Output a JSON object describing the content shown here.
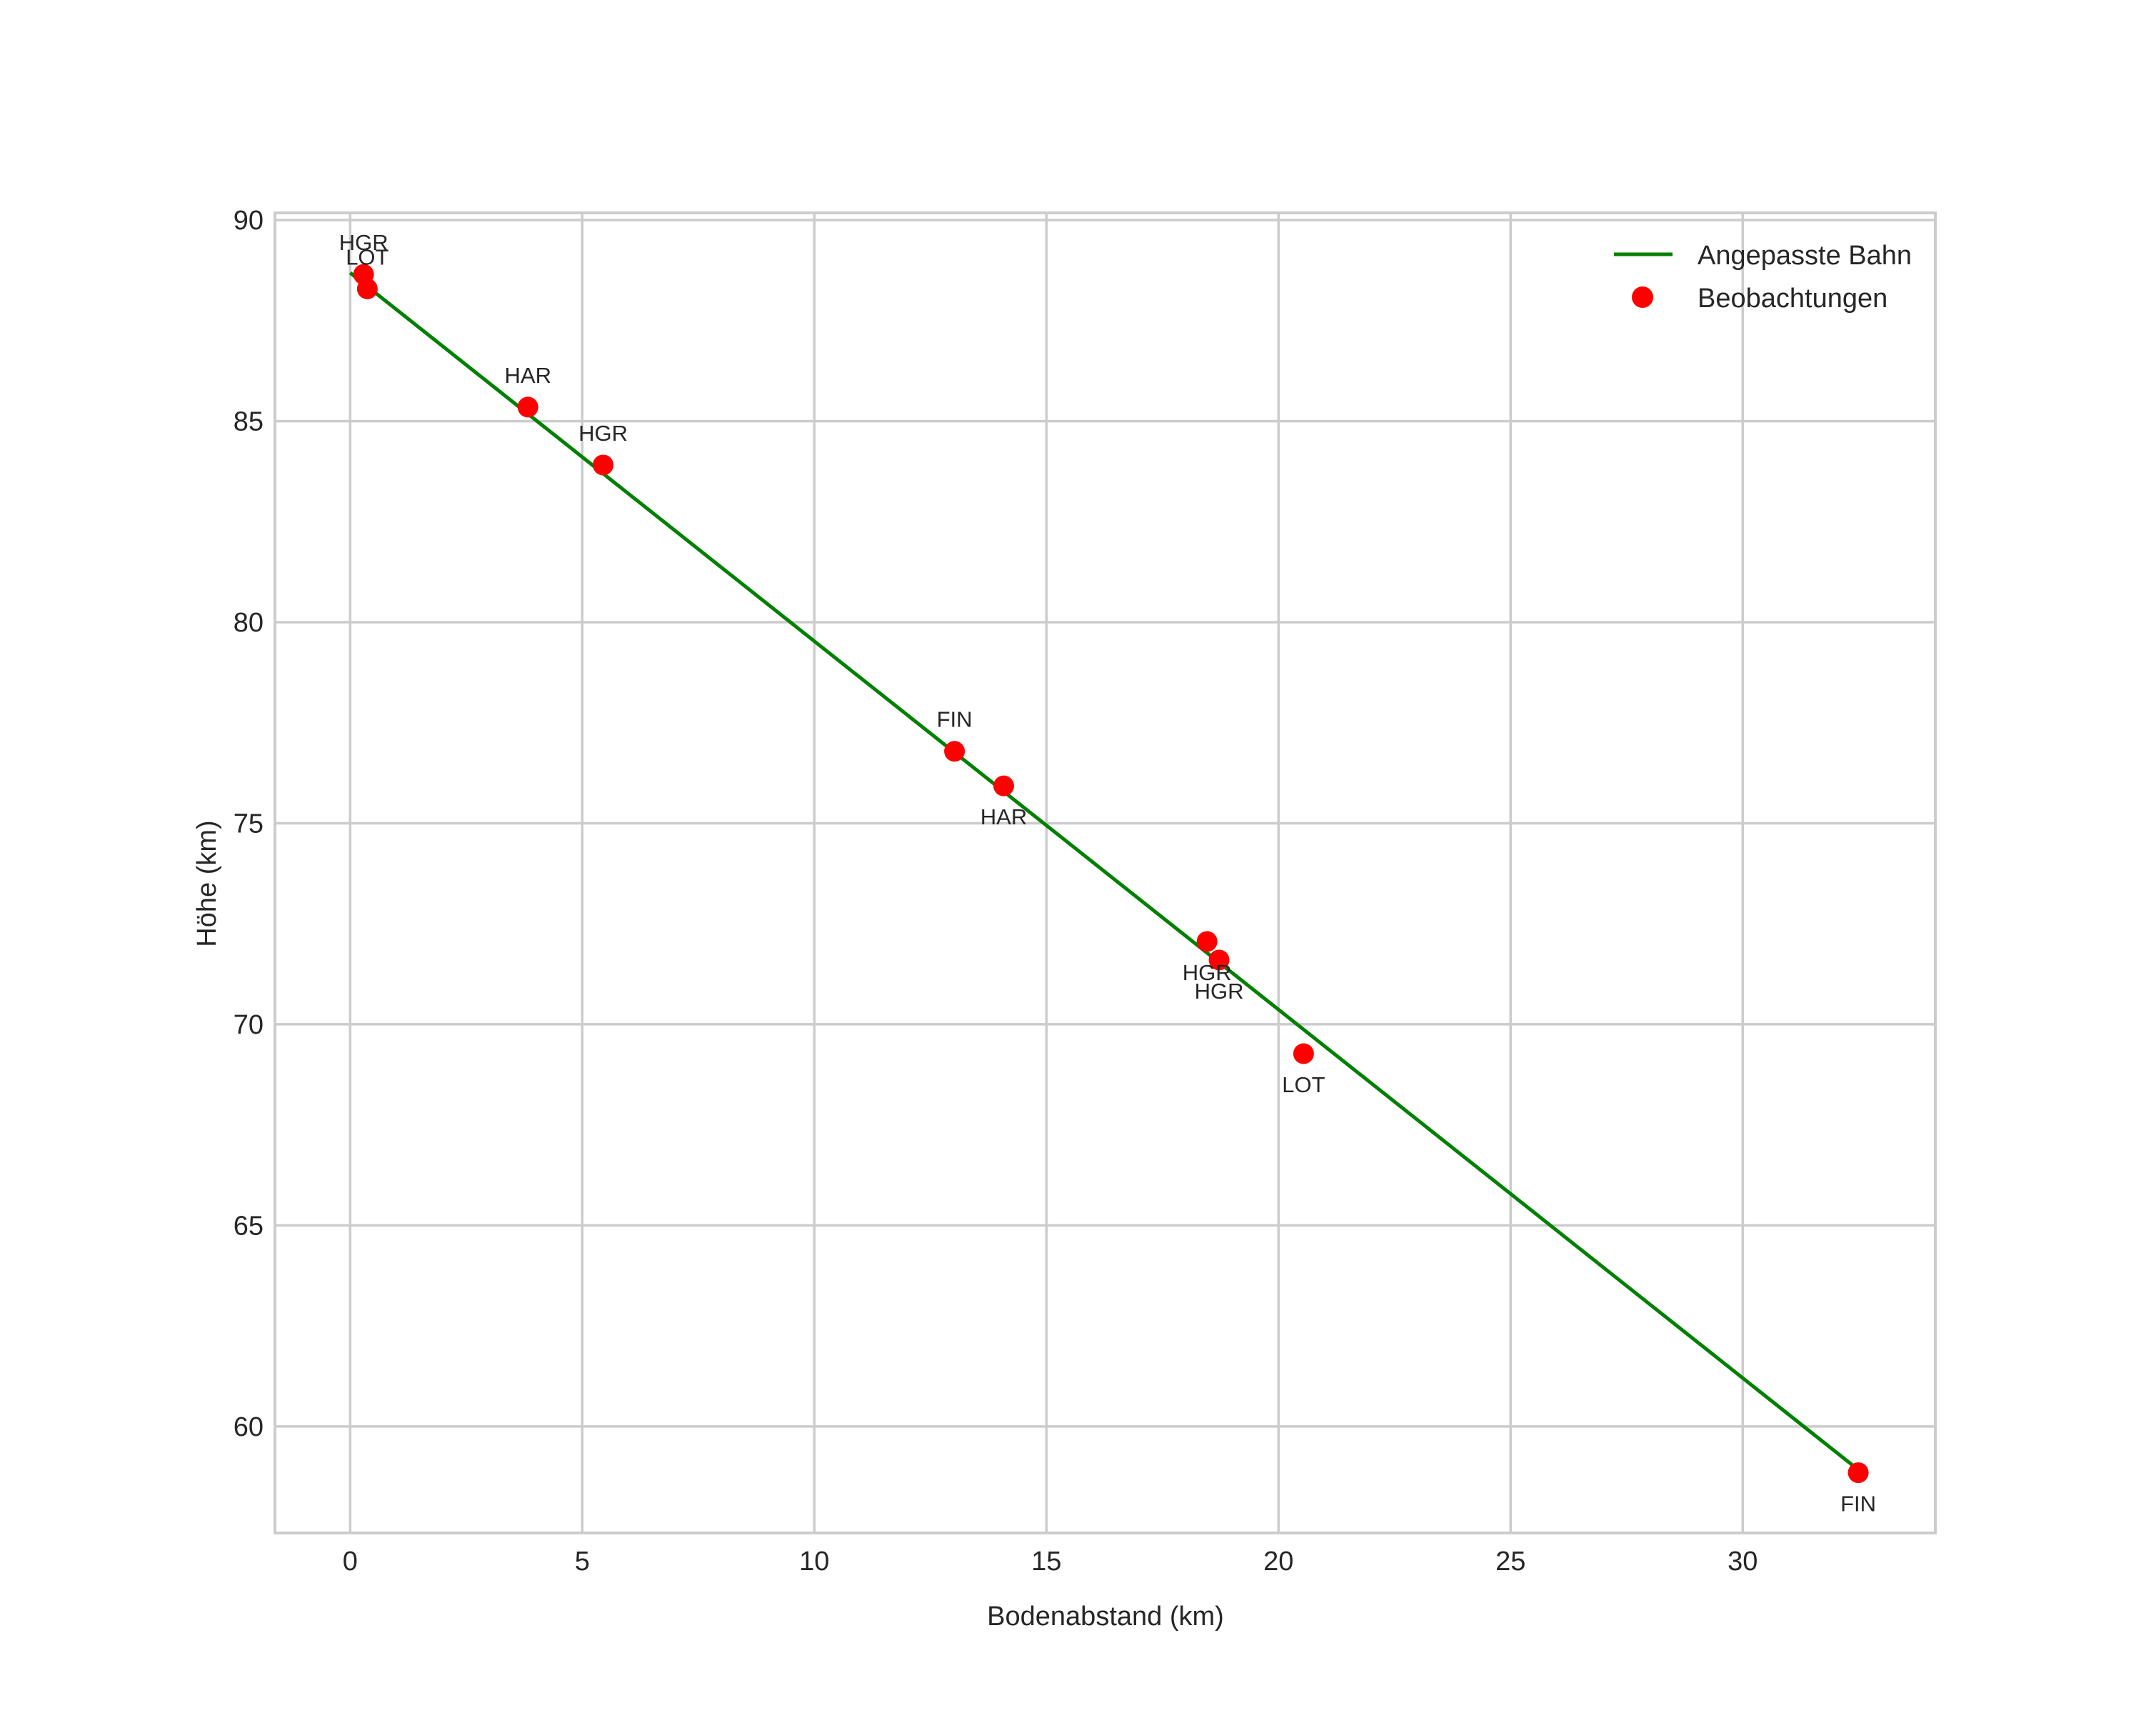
{
  "chart_data": {
    "type": "scatter",
    "title": "",
    "xlabel": "Bodenabstand (km)",
    "ylabel": "Höhe (km)",
    "xlim": [
      -1.62,
      34.15
    ],
    "ylim": [
      57.35,
      90.18
    ],
    "xticks": [
      0,
      5,
      10,
      15,
      20,
      25,
      30
    ],
    "yticks": [
      60,
      65,
      70,
      75,
      80,
      85,
      90
    ],
    "grid": true,
    "legend_position": "upper right",
    "series": [
      {
        "name": "Angepasste Bahn",
        "kind": "line",
        "color": "#008000",
        "x": [
          0.0,
          32.46
        ],
        "y": [
          88.69,
          58.95
        ]
      },
      {
        "name": "Beobachtungen",
        "kind": "scatter",
        "color": "#ff0000",
        "points": [
          {
            "x": 0.29,
            "y": 88.65,
            "label": "HGR",
            "label_pos": "above"
          },
          {
            "x": 0.37,
            "y": 88.29,
            "label": "LOT",
            "label_pos": "above"
          },
          {
            "x": 3.83,
            "y": 85.35,
            "label": "HAR",
            "label_pos": "above"
          },
          {
            "x": 5.45,
            "y": 83.91,
            "label": "HGR",
            "label_pos": "above"
          },
          {
            "x": 13.02,
            "y": 76.79,
            "label": "FIN",
            "label_pos": "above"
          },
          {
            "x": 14.08,
            "y": 75.93,
            "label": "HAR",
            "label_pos": "below"
          },
          {
            "x": 18.46,
            "y": 72.06,
            "label": "HGR",
            "label_pos": "below"
          },
          {
            "x": 18.72,
            "y": 71.6,
            "label": "HGR",
            "label_pos": "below"
          },
          {
            "x": 20.54,
            "y": 69.27,
            "label": "LOT",
            "label_pos": "below"
          },
          {
            "x": 32.49,
            "y": 58.85,
            "label": "FIN",
            "label_pos": "below"
          }
        ]
      }
    ]
  },
  "legend": {
    "items": [
      {
        "label": "Angepasste Bahn",
        "marker": "line",
        "color": "#008000"
      },
      {
        "label": "Beobachtungen",
        "marker": "dot",
        "color": "#ff0000"
      }
    ]
  },
  "style": {
    "grid_color": "#cccccc",
    "frame_color": "#cccccc",
    "text_color": "#262626"
  }
}
